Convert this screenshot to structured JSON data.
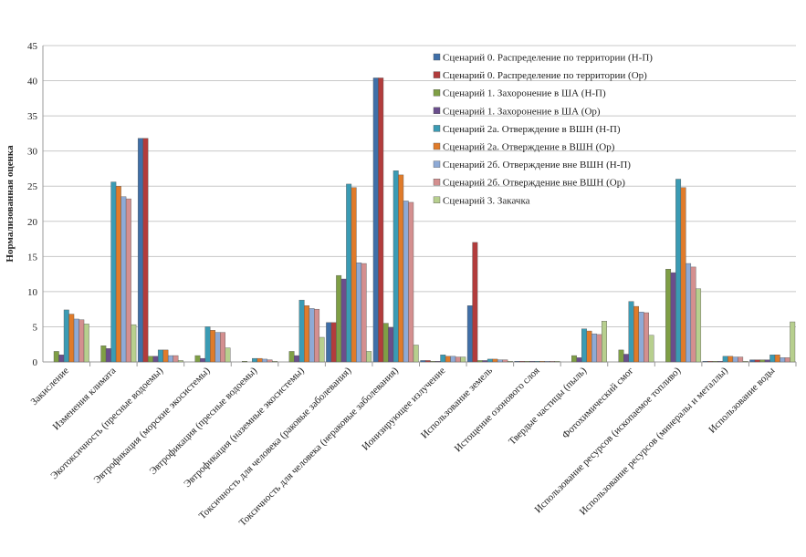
{
  "chart_data": {
    "type": "bar",
    "title": "",
    "xlabel": "",
    "ylabel": "Нормализованная оценка",
    "ylim": [
      0,
      45
    ],
    "yticks": [
      0,
      5,
      10,
      15,
      20,
      25,
      30,
      35,
      40,
      45
    ],
    "grid": true,
    "legend_position": "top-right",
    "categories": [
      "Закисление",
      "Изменения климата",
      "Экотоксичность (пресные водоемы)",
      "Эвтрофикация (морские экосистемы)",
      "Эвтрофикация (пресные водоемы)",
      "Эвтрофикация (наземные экосистемы)",
      "Токсичность для человека (раковые заболевания)",
      "Токсичность для человека (нераковые заболевания)",
      "Ионизирующее излучение",
      "Использование земель",
      "Истощение озонового слоя",
      "Твердые частицы (пыль)",
      "Фотохимический смог",
      "Использование ресурсов (ископаемое топливо)",
      "Использование ресурсов (минералы и металлы)",
      "Использование воды"
    ],
    "series": [
      {
        "name": "Сценарий 0. Распределение по территории (Н-П)",
        "color": "#3f6fa8",
        "values": [
          0,
          0,
          31.8,
          0,
          0,
          0,
          5.6,
          40.4,
          0.2,
          8.0,
          0.1,
          0,
          0,
          0,
          0.1,
          0.3
        ]
      },
      {
        "name": "Сценарий 0. Распределение по территории (Ор)",
        "color": "#b23c3c",
        "values": [
          0,
          0,
          31.8,
          0,
          0,
          0,
          5.6,
          40.4,
          0.2,
          17.0,
          0.1,
          0,
          0,
          0,
          0.1,
          0.3
        ]
      },
      {
        "name": "Сценарий 1. Захоронение в ША (Н-П)",
        "color": "#7f9f45",
        "values": [
          1.5,
          2.3,
          0.8,
          0.9,
          0.1,
          1.5,
          12.3,
          5.5,
          0.1,
          0.2,
          0.1,
          0.9,
          1.7,
          13.2,
          0.1,
          0.3
        ]
      },
      {
        "name": "Сценарий 1. Захоронение в ША (Ор)",
        "color": "#6a4e8c",
        "values": [
          1.0,
          1.9,
          0.8,
          0.5,
          0,
          0.9,
          11.8,
          4.9,
          0.1,
          0.2,
          0.1,
          0.6,
          1.1,
          12.7,
          0.1,
          0.3
        ]
      },
      {
        "name": "Сценарий 2а. Отверждение в ВШН (Н-П)",
        "color": "#3a9bb4",
        "values": [
          7.4,
          25.6,
          1.7,
          5.0,
          0.5,
          8.8,
          25.3,
          27.2,
          1.0,
          0.4,
          0.1,
          4.7,
          8.6,
          26.0,
          0.8,
          1.0
        ]
      },
      {
        "name": "Сценарий 2а. Отверждение в ВШН (Ор)",
        "color": "#e07b2a",
        "values": [
          6.8,
          25.0,
          1.7,
          4.5,
          0.5,
          8.0,
          24.8,
          26.6,
          0.8,
          0.4,
          0.1,
          4.4,
          7.9,
          24.8,
          0.8,
          1.0
        ]
      },
      {
        "name": "Сценарий 2б. Отверждение вне ВШН (Н-П)",
        "color": "#8eaad6",
        "values": [
          6.1,
          23.5,
          0.9,
          4.2,
          0.4,
          7.6,
          14.1,
          22.9,
          0.8,
          0.3,
          0.1,
          4.0,
          7.1,
          14.0,
          0.7,
          0.6
        ]
      },
      {
        "name": "Сценарий 2б. Отверждение вне ВШН (Ор)",
        "color": "#d48f8f",
        "values": [
          6.0,
          23.2,
          0.9,
          4.2,
          0.3,
          7.5,
          14.0,
          22.7,
          0.7,
          0.3,
          0.1,
          3.9,
          7.0,
          13.5,
          0.7,
          0.6
        ]
      },
      {
        "name": "Сценарий 3. Закачка",
        "color": "#b7cf8e",
        "values": [
          5.4,
          5.3,
          0.2,
          2.0,
          0.1,
          3.5,
          1.5,
          2.4,
          0.7,
          0.1,
          0.1,
          5.8,
          3.8,
          10.4,
          0.1,
          5.7
        ]
      }
    ]
  }
}
